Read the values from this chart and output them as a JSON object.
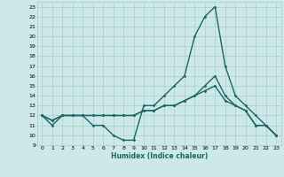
{
  "title": "",
  "xlabel": "Humidex (Indice chaleur)",
  "ylabel": "",
  "background_color": "#cce8e8",
  "grid_color": "#aacccc",
  "line_color": "#1a6666",
  "xlim": [
    -0.5,
    23.5
  ],
  "ylim": [
    9,
    23.5
  ],
  "yticks": [
    9,
    10,
    11,
    12,
    13,
    14,
    15,
    16,
    17,
    18,
    19,
    20,
    21,
    22,
    23
  ],
  "xticks": [
    0,
    1,
    2,
    3,
    4,
    5,
    6,
    7,
    8,
    9,
    10,
    11,
    12,
    13,
    14,
    15,
    16,
    17,
    18,
    19,
    20,
    21,
    22,
    23
  ],
  "series": [
    {
      "x": [
        0,
        1,
        2,
        3,
        4,
        5,
        6,
        7,
        8,
        9,
        10,
        11,
        12,
        13,
        14,
        15,
        16,
        17,
        18,
        19,
        20,
        21,
        22,
        23
      ],
      "y": [
        12,
        11,
        12,
        12,
        12,
        11,
        11,
        10,
        9.5,
        9.5,
        13,
        13,
        14,
        15,
        16,
        20,
        22,
        23,
        17,
        14,
        13,
        12,
        11,
        10
      ],
      "color": "#1a6666",
      "lw": 1.0
    },
    {
      "x": [
        0,
        1,
        2,
        3,
        4,
        5,
        6,
        7,
        8,
        9,
        10,
        11,
        12,
        13,
        14,
        15,
        16,
        17,
        18,
        19,
        20,
        21,
        22,
        23
      ],
      "y": [
        12,
        11.5,
        12,
        12,
        12,
        12,
        12,
        12,
        12,
        12,
        12.5,
        12.5,
        13,
        13,
        13.5,
        14,
        15,
        16,
        14,
        13,
        12.5,
        11,
        11,
        10
      ],
      "color": "#1a6666",
      "lw": 1.0
    },
    {
      "x": [
        0,
        1,
        2,
        3,
        4,
        5,
        6,
        7,
        8,
        9,
        10,
        11,
        12,
        13,
        14,
        15,
        16,
        17,
        18,
        19,
        20,
        21,
        22,
        23
      ],
      "y": [
        12,
        11.5,
        12,
        12,
        12,
        12,
        12,
        12,
        12,
        12,
        12.5,
        12.5,
        13,
        13,
        13.5,
        14,
        14.5,
        15,
        13.5,
        13,
        12.5,
        11,
        11,
        10
      ],
      "color": "#1a6666",
      "lw": 1.0
    }
  ]
}
